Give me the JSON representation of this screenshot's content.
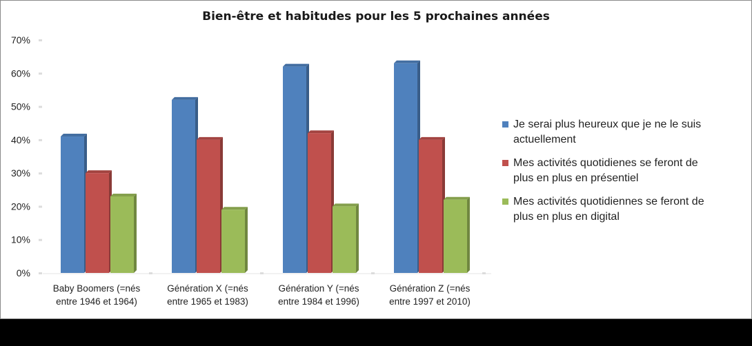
{
  "chart_data": {
    "type": "bar",
    "title": "Bien-être et habitudes pour les 5 prochaines années",
    "xlabel": "",
    "ylabel": "",
    "ylim": [
      0,
      70
    ],
    "y_ticks": [
      "0%",
      "10%",
      "20%",
      "30%",
      "40%",
      "50%",
      "60%",
      "70%"
    ],
    "y_tick_values": [
      0,
      10,
      20,
      30,
      40,
      50,
      60,
      70
    ],
    "categories": [
      [
        "Baby Boomers (=nés",
        "entre 1946 et 1964)"
      ],
      [
        "Génération X (=nés",
        "entre 1965 et 1983)"
      ],
      [
        "Génération Y (=nés",
        "entre 1984 et 1996)"
      ],
      [
        "Génération Z (=nés",
        "entre  1997 et 2010)"
      ]
    ],
    "series": [
      {
        "name": "Je serai plus heureux que je ne le suis actuellement",
        "color": "#4f81bd",
        "values": [
          41,
          52,
          62,
          63
        ]
      },
      {
        "name": "Mes activités quotidienes se feront de plus en plus en présentiel",
        "color": "#c0504d",
        "values": [
          30,
          40,
          42,
          40
        ]
      },
      {
        "name": "Mes activités quotidiennes se feront de plus en plus en digital",
        "color": "#9bbb59",
        "values": [
          23,
          19,
          20,
          22
        ]
      }
    ],
    "legend_position": "right",
    "grid": false,
    "chart_style": "3d-clustered-column"
  },
  "legend": {
    "items": [
      {
        "lines": [
          "Je serai plus heureux que je ne le suis",
          "actuellement"
        ],
        "color": "#4f81bd"
      },
      {
        "lines": [
          "Mes activités quotidienes se feront de",
          "plus en plus en présentiel"
        ],
        "color": "#c0504d"
      },
      {
        "lines": [
          "Mes activités quotidiennes se feront de",
          "plus en plus en digital"
        ],
        "color": "#9bbb59"
      }
    ]
  }
}
